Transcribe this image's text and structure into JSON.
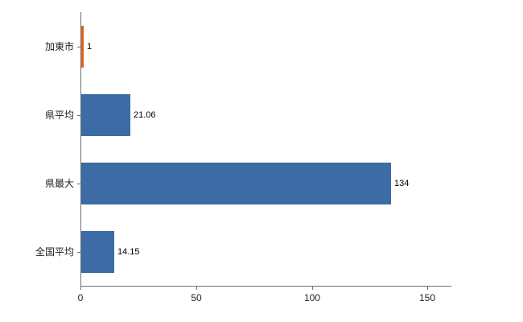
{
  "chart_data": {
    "type": "bar",
    "orientation": "horizontal",
    "title": "",
    "categories": [
      "加東市",
      "県平均",
      "県最大",
      "全国平均"
    ],
    "values": [
      1,
      21.06,
      134,
      14.15
    ],
    "value_labels": [
      "1",
      "21.06",
      "134",
      "14.15"
    ],
    "bar_colors": [
      "#e2621c",
      "#3c6ba5",
      "#3c6ba5",
      "#3c6ba5"
    ],
    "xlim": [
      0,
      160
    ],
    "x_ticks": [
      0,
      50,
      100,
      150
    ],
    "grid": false,
    "legend": false,
    "axis_color": "#707070",
    "label_color": "#222222",
    "value_label_color": "#000000",
    "background": "#ffffff"
  }
}
